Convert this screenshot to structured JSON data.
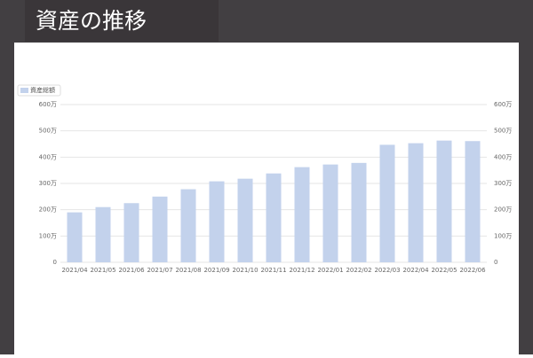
{
  "header": {
    "title": "資産の推移"
  },
  "chart_data": {
    "type": "bar",
    "categories": [
      "2021/04",
      "2021/05",
      "2021/06",
      "2021/07",
      "2021/08",
      "2021/09",
      "2021/10",
      "2021/11",
      "2021/12",
      "2022/01",
      "2022/02",
      "2022/03",
      "2022/04",
      "2022/05",
      "2022/06"
    ],
    "series": [
      {
        "name": "資産総額",
        "color": "#c3d2ec",
        "values": [
          190,
          210,
          225,
          250,
          278,
          308,
          318,
          338,
          362,
          372,
          378,
          447,
          453,
          463,
          461
        ]
      }
    ],
    "ylim": [
      0,
      600
    ],
    "yticks": [
      0,
      {
        "value": 100,
        "label": "100万"
      },
      {
        "value": 200,
        "label": "200万"
      },
      {
        "value": 300,
        "label": "300万"
      },
      {
        "value": 400,
        "label": "400万"
      },
      {
        "value": 500,
        "label": "500万"
      },
      {
        "value": 600,
        "label": "600万"
      }
    ],
    "y2lim": [
      0,
      600
    ],
    "y2ticks": [
      0,
      {
        "value": 100,
        "label": "100万"
      },
      {
        "value": 200,
        "label": "200万"
      },
      {
        "value": 300,
        "label": "300万"
      },
      {
        "value": 400,
        "label": "400万"
      },
      {
        "value": 500,
        "label": "500万"
      },
      {
        "value": 600,
        "label": "600万"
      }
    ],
    "grid": true,
    "legend": "top-left"
  }
}
